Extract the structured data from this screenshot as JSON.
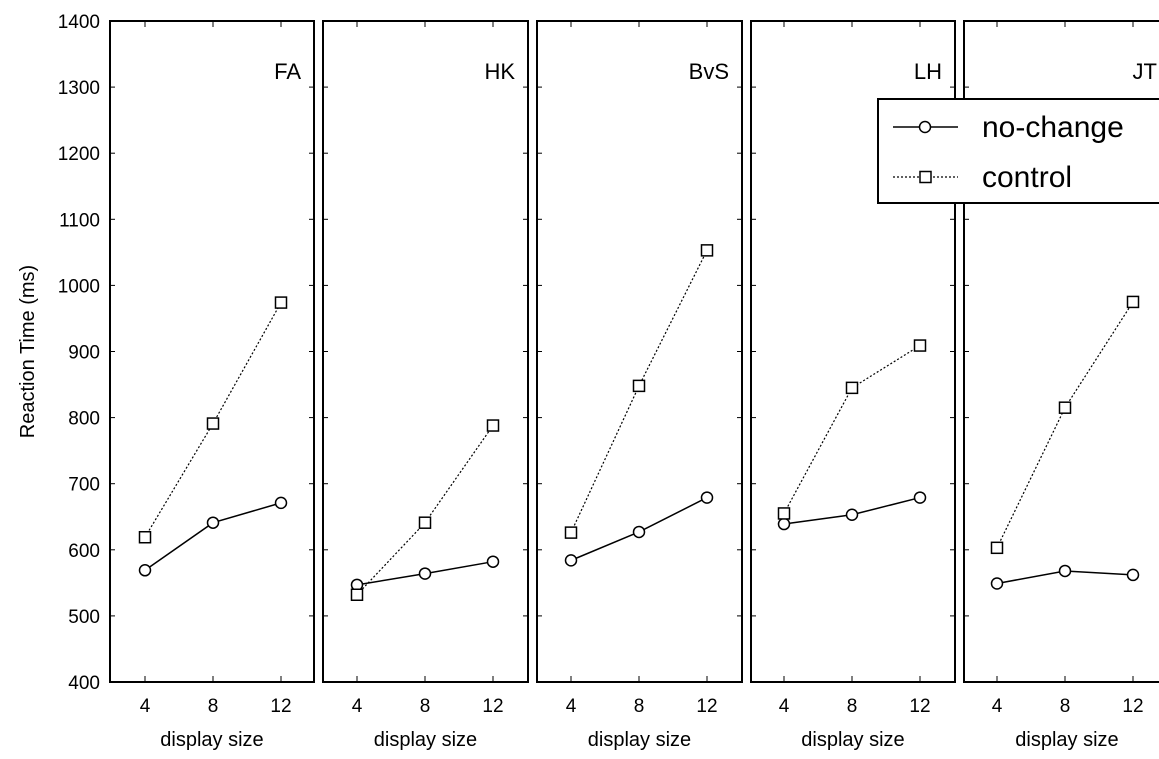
{
  "chart_data": {
    "type": "line",
    "ylabel": "Reaction Time (ms)",
    "xlabel": "display size",
    "ylim": [
      400,
      1400
    ],
    "yticks": [
      400,
      500,
      600,
      700,
      800,
      900,
      1000,
      1100,
      1200,
      1300,
      1400
    ],
    "x": [
      4,
      8,
      12
    ],
    "legend": {
      "position": "top-right",
      "entries": [
        {
          "name": "no-change",
          "marker": "circle",
          "line": "solid"
        },
        {
          "name": "control",
          "marker": "square",
          "line": "dotted"
        }
      ]
    },
    "panels": [
      {
        "title": "FA",
        "xlabel": "display size",
        "series": [
          {
            "name": "no-change",
            "values": [
              569,
              641,
              671
            ]
          },
          {
            "name": "control",
            "values": [
              619,
              791,
              974
            ]
          }
        ]
      },
      {
        "title": "HK",
        "xlabel": "display size",
        "series": [
          {
            "name": "no-change",
            "values": [
              547,
              564,
              582
            ]
          },
          {
            "name": "control",
            "values": [
              532,
              641,
              788
            ]
          }
        ]
      },
      {
        "title": "BvS",
        "xlabel": "display size",
        "series": [
          {
            "name": "no-change",
            "values": [
              584,
              627,
              679
            ]
          },
          {
            "name": "control",
            "values": [
              626,
              848,
              1053
            ]
          }
        ]
      },
      {
        "title": "LH",
        "xlabel": "display size",
        "series": [
          {
            "name": "no-change",
            "values": [
              639,
              653,
              679
            ]
          },
          {
            "name": "control",
            "values": [
              655,
              845,
              909
            ]
          }
        ]
      },
      {
        "title": "JT",
        "xlabel": "display size",
        "series": [
          {
            "name": "no-change",
            "values": [
              549,
              568,
              562
            ]
          },
          {
            "name": "control",
            "values": [
              603,
              815,
              975
            ]
          }
        ]
      }
    ]
  }
}
